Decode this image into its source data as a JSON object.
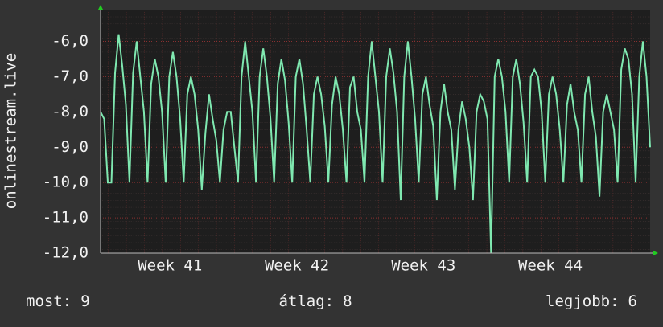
{
  "chart_data": {
    "type": "line",
    "y_label": "onlinestream.live",
    "color": "#7fe8b0",
    "xlim": [
      0,
      152
    ],
    "xticks": [
      {
        "value": 19.2,
        "label": "Week 41"
      },
      {
        "value": 54.3,
        "label": "Week 42"
      },
      {
        "value": 89.3,
        "label": "Week 43"
      },
      {
        "value": 124.4,
        "label": "Week 44"
      }
    ],
    "ylim": [
      -12,
      -5.1
    ],
    "yticks": [
      {
        "value": -12,
        "label": "-12,0"
      },
      {
        "value": -11,
        "label": "-11,0"
      },
      {
        "value": -10,
        "label": "-10,0"
      },
      {
        "value": -9,
        "label": "-9,0"
      },
      {
        "value": -8,
        "label": "-8,0"
      },
      {
        "value": -7,
        "label": "-7,0"
      },
      {
        "value": -6,
        "label": "-6,0"
      }
    ],
    "grid": true,
    "values": [
      -8.0,
      -8.2,
      -10.0,
      -10,
      -6.9,
      -5.8,
      -6.7,
      -7.8,
      -10,
      -6.9,
      -6.0,
      -7.0,
      -8.0,
      -10,
      -7.2,
      -6.5,
      -7.0,
      -8.0,
      -10,
      -7.0,
      -6.3,
      -7.0,
      -8.2,
      -10,
      -7.5,
      -7.0,
      -7.5,
      -8.5,
      -10.2,
      -8.6,
      -7.5,
      -8.2,
      -8.8,
      -10,
      -8.5,
      -8.0,
      -8.0,
      -9.0,
      -10,
      -7.0,
      -6.0,
      -7.0,
      -8.0,
      -10,
      -7.0,
      -6.2,
      -7.0,
      -8.2,
      -10,
      -7.2,
      -6.5,
      -7.1,
      -8.3,
      -10,
      -7.0,
      -6.5,
      -7.2,
      -8.5,
      -10,
      -7.5,
      -7.0,
      -7.5,
      -8.4,
      -10,
      -7.8,
      -7.0,
      -7.5,
      -8.5,
      -10,
      -7.3,
      -7.0,
      -8.0,
      -8.5,
      -10,
      -7.0,
      -6.0,
      -7.0,
      -8.0,
      -10,
      -7.0,
      -6.2,
      -6.9,
      -8.0,
      -10.5,
      -7.0,
      -6.0,
      -7.0,
      -8.2,
      -10,
      -7.5,
      -7.0,
      -7.8,
      -8.4,
      -10.5,
      -8.0,
      -7.2,
      -8.0,
      -8.5,
      -10.2,
      -8.5,
      -7.7,
      -8.2,
      -9.0,
      -10.5,
      -8.0,
      -7.5,
      -7.7,
      -8.2,
      -12.0,
      -7.0,
      -6.5,
      -7.0,
      -8.0,
      -10,
      -7.0,
      -6.5,
      -7.2,
      -8.3,
      -10,
      -7.0,
      -6.8,
      -7.0,
      -8.0,
      -10,
      -7.5,
      -7.0,
      -7.5,
      -8.5,
      -10,
      -7.8,
      -7.2,
      -8.0,
      -8.5,
      -10,
      -7.5,
      -7.0,
      -8.0,
      -8.7,
      -10.4,
      -8.0,
      -7.5,
      -8.0,
      -8.5,
      -10,
      -6.8,
      -6.2,
      -6.5,
      -7.5,
      -10,
      -7.0,
      -6.0,
      -7.0,
      -9.0
    ],
    "stats": [
      {
        "label": "most:",
        "value": 9
      },
      {
        "label": "átlag:",
        "value": 8
      },
      {
        "label": "legjobb:",
        "value": 6
      }
    ]
  }
}
